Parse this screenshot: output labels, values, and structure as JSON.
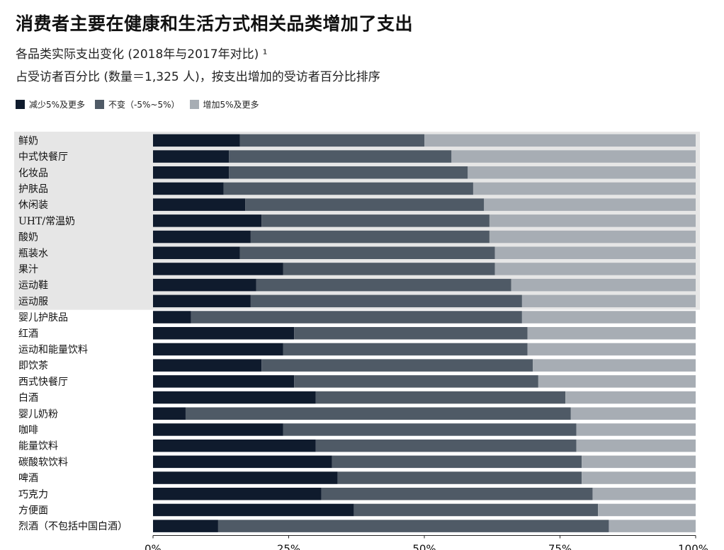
{
  "chart_data": {
    "type": "bar",
    "orientation": "horizontal",
    "stacked": "percent",
    "title": "消费者主要在健康和生活方式相关品类增加了支出",
    "subtitle_lines": [
      "各品类实际支出变化 (2018年与2017年对比) ¹",
      "占受访者百分比 (数量＝1,325 人)，按支出增加的受访者百分比排序"
    ],
    "xlim": [
      0,
      100
    ],
    "x_ticks": [
      "0%",
      "25%",
      "50%",
      "75%",
      "100%"
    ],
    "legend_position": "top-left",
    "categories": [
      "鲜奶",
      "中式快餐厅",
      "化妆品",
      "护肤品",
      "休闲装",
      "UHT/常温奶",
      "酸奶",
      "瓶装水",
      "果汁",
      "运动鞋",
      "运动服",
      "婴儿护肤品",
      "红酒",
      "运动和能量饮料",
      "即饮茶",
      "西式快餐厅",
      "白酒",
      "婴儿奶粉",
      "咖啡",
      "能量饮料",
      "碳酸软饮料",
      "啤酒",
      "巧克力",
      "方便面",
      "烈酒（不包括中国白酒）"
    ],
    "highlighted_count": 11,
    "series": [
      {
        "name": "减少5%及更多",
        "color": "#0f1b2d",
        "values": [
          16,
          14,
          14,
          13,
          17,
          20,
          18,
          16,
          24,
          19,
          18,
          7,
          26,
          24,
          20,
          26,
          30,
          6,
          24,
          30,
          33,
          34,
          31,
          37,
          12
        ]
      },
      {
        "name": "不变（-5%~5%）",
        "color": "#4f5a66",
        "values": [
          34,
          41,
          44,
          46,
          44,
          42,
          44,
          47,
          39,
          47,
          50,
          61,
          43,
          45,
          50,
          45,
          46,
          71,
          54,
          48,
          46,
          45,
          50,
          45,
          72
        ]
      },
      {
        "name": "增加5%及更多",
        "color": "#a7adb4",
        "values": [
          50,
          45,
          42,
          41,
          39,
          38,
          38,
          37,
          37,
          34,
          32,
          32,
          31,
          31,
          30,
          29,
          24,
          23,
          22,
          22,
          21,
          21,
          19,
          18,
          16
        ]
      }
    ]
  }
}
